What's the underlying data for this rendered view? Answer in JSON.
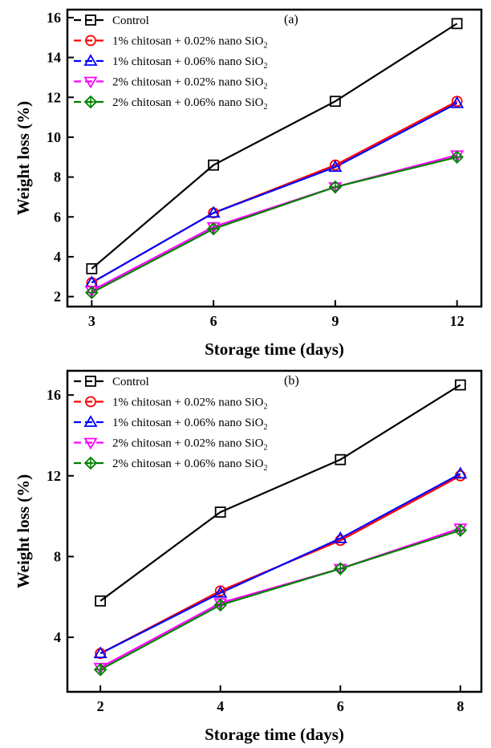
{
  "chart_data": [
    {
      "type": "line",
      "panel_label": "(a)",
      "xlabel": "Storage time (days)",
      "ylabel": "Weight loss (%)",
      "x": [
        3,
        6,
        9,
        12
      ],
      "xticks": [
        3,
        6,
        9,
        12
      ],
      "xlim": [
        2.4,
        12.6
      ],
      "yticks": [
        2,
        4,
        6,
        8,
        10,
        12,
        14,
        16
      ],
      "ylim": [
        1.5,
        16.4
      ],
      "legend_position": "top-left",
      "series": [
        {
          "name": "Control",
          "sub": "",
          "color": "#000000",
          "marker": "square",
          "values": [
            3.4,
            8.6,
            11.8,
            15.7
          ]
        },
        {
          "name": "1% chitosan + 0.02% nano SiO",
          "sub": "2",
          "color": "#ff0000",
          "marker": "circle",
          "values": [
            2.7,
            6.2,
            8.6,
            11.8
          ]
        },
        {
          "name": "1% chitosan + 0.06% nano SiO",
          "sub": "2",
          "color": "#0000ff",
          "marker": "triangle-up",
          "values": [
            2.7,
            6.2,
            8.5,
            11.7
          ]
        },
        {
          "name": "2% chitosan + 0.02% nano SiO",
          "sub": "2",
          "color": "#ff00ff",
          "marker": "triangle-down",
          "values": [
            2.3,
            5.5,
            7.5,
            9.1
          ]
        },
        {
          "name": "2% chitosan + 0.06% nano SiO",
          "sub": "2",
          "color": "#008000",
          "marker": "diamond-plus",
          "values": [
            2.2,
            5.4,
            7.5,
            9.0
          ]
        }
      ]
    },
    {
      "type": "line",
      "panel_label": "(b)",
      "xlabel": "Storage time (days)",
      "ylabel": "Weight loss (%)",
      "x": [
        2,
        4,
        6,
        8
      ],
      "xticks": [
        2,
        4,
        6,
        8
      ],
      "xlim": [
        1.45,
        8.35
      ],
      "yticks": [
        4,
        8,
        12,
        16
      ],
      "ylim": [
        1.3,
        17.2
      ],
      "legend_position": "top-left",
      "series": [
        {
          "name": "Control",
          "sub": "",
          "color": "#000000",
          "marker": "square",
          "values": [
            5.8,
            10.2,
            12.8,
            16.5
          ]
        },
        {
          "name": "1% chitosan + 0.02% nano SiO",
          "sub": "2",
          "color": "#ff0000",
          "marker": "circle",
          "values": [
            3.2,
            6.3,
            8.8,
            12.0
          ]
        },
        {
          "name": "1% chitosan + 0.06% nano SiO",
          "sub": "2",
          "color": "#0000ff",
          "marker": "triangle-up",
          "values": [
            3.2,
            6.2,
            8.9,
            12.1
          ]
        },
        {
          "name": "2% chitosan + 0.02% nano SiO",
          "sub": "2",
          "color": "#ff00ff",
          "marker": "triangle-down",
          "values": [
            2.5,
            5.7,
            7.4,
            9.4
          ]
        },
        {
          "name": "2% chitosan + 0.06% nano SiO",
          "sub": "2",
          "color": "#008000",
          "marker": "diamond-plus",
          "values": [
            2.4,
            5.6,
            7.4,
            9.3
          ]
        }
      ]
    }
  ]
}
